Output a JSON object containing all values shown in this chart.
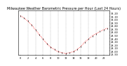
{
  "title": "Milwaukee Weather Barometric Pressure per Hour (Last 24 Hours)",
  "hours": [
    0,
    1,
    2,
    3,
    4,
    5,
    6,
    7,
    8,
    9,
    10,
    11,
    12,
    13,
    14,
    15,
    16,
    17,
    18,
    19,
    20,
    21,
    22,
    23
  ],
  "pressure": [
    30.12,
    30.05,
    29.95,
    29.82,
    29.68,
    29.52,
    29.38,
    29.24,
    29.12,
    29.05,
    28.98,
    28.95,
    28.92,
    28.95,
    28.98,
    29.05,
    29.15,
    29.28,
    29.38,
    29.48,
    29.55,
    29.62,
    29.68,
    29.72
  ],
  "line_color": "#ff0000",
  "marker_color": "#000000",
  "bg_color": "#ffffff",
  "grid_color": "#999999",
  "title_color": "#000000",
  "ylim_min": 28.88,
  "ylim_max": 30.28,
  "ytick_labels": [
    "30.20",
    "30.10",
    "30.00",
    "29.90",
    "29.80",
    "29.70",
    "29.60",
    "29.50",
    "29.40",
    "29.30",
    "29.20",
    "29.10",
    "29.00",
    "28.90"
  ],
  "ytick_values": [
    30.2,
    30.1,
    30.0,
    29.9,
    29.8,
    29.7,
    29.6,
    29.5,
    29.4,
    29.3,
    29.2,
    29.1,
    29.0,
    28.9
  ],
  "xtick_positions": [
    0,
    2,
    4,
    6,
    8,
    10,
    12,
    14,
    16,
    18,
    20,
    22
  ],
  "grid_positions": [
    2,
    4,
    6,
    8,
    10,
    12,
    14,
    16,
    18,
    20,
    22
  ],
  "title_fontsize": 3.5,
  "tick_fontsize": 2.5
}
